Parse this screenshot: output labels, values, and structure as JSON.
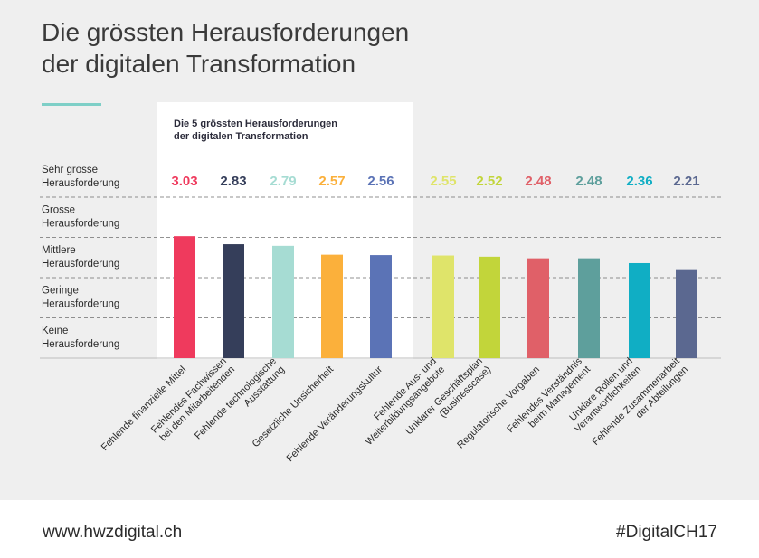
{
  "header": {
    "title": "Die grössten Herausforderungen\nder digitalen Transformation"
  },
  "chart_data": {
    "type": "bar",
    "highlight_box_label": "Die 5 grössten Herausforderungen\nder digitalen Transformation",
    "highlight_count": 5,
    "y_levels": [
      "Sehr grosse\nHerausforderung",
      "Grosse\nHerausforderung",
      "Mittlere\nHerausforderung",
      "Geringe\nHerausforderung",
      "Keine\nHerausforderung"
    ],
    "ylim": [
      0,
      4
    ],
    "categories": [
      "Fehlende finanzielle Mittel",
      "Fehlendes Fachwissen\nbei den Mitarbeitenden",
      "Fehlende technologische\nAusstattung",
      "Gesetzliche Unsicherheit",
      "Fehlende Veränderungskultur",
      "Fehlende Aus- und\nWeiterbildungsangebote",
      "Unklarer Geschäftsplan\n(Businesscase)",
      "Regulatorische Vorgaben",
      "Fehlendes Verständnis\nbeim Management",
      "Unklare Rollen und\nVerantwortlichkeiten",
      "Fehlende Zusammenarbeit\nder Abteilungen"
    ],
    "values": [
      3.03,
      2.83,
      2.79,
      2.57,
      2.56,
      2.55,
      2.52,
      2.48,
      2.48,
      2.36,
      2.21
    ],
    "value_labels": [
      "3.03",
      "2.83",
      "2.79",
      "2.57",
      "2.56",
      "2.55",
      "2.52",
      "2.48",
      "2.48",
      "2.36",
      "2.21"
    ],
    "colors": [
      "#ef3a5d",
      "#353e5a",
      "#a6dcd3",
      "#fbb03b",
      "#5b73b6",
      "#dfe46a",
      "#c2d53a",
      "#e06068",
      "#5e9f9c",
      "#10aec4",
      "#5b6890"
    ]
  },
  "footer": {
    "url": "www.hwzdigital.ch",
    "hashtag": "#DigitalCH17"
  }
}
